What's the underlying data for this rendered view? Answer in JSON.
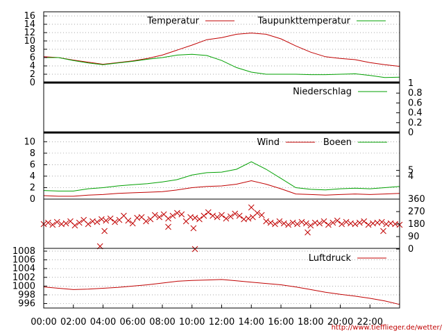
{
  "chart_data": {
    "type": "line",
    "x_ticks": [
      "00:00",
      "02:00",
      "04:00",
      "06:00",
      "08:00",
      "10:00",
      "12:00",
      "14:00",
      "16:00",
      "18:00",
      "20:00",
      "22:00"
    ],
    "x_range_hours": [
      0,
      24
    ],
    "source_url": "http://www.tiefflieger.de/wetter/",
    "colors": {
      "red": "#c00000",
      "green": "#00a000",
      "grid": "#888888",
      "axis": "#000000"
    },
    "panels": [
      {
        "id": "temperature",
        "ylim": [
          0,
          17
        ],
        "y_ticks": [
          "0",
          "2",
          "4",
          "6",
          "8",
          "10",
          "12",
          "14",
          "16"
        ],
        "grid": "dotted",
        "legend_placement": "top",
        "series": [
          {
            "name": "Temperatur",
            "color": "red",
            "x": [
              0,
              1,
              2,
              3,
              4,
              5,
              6,
              7,
              8,
              9,
              10,
              11,
              12,
              13,
              14,
              15,
              16,
              17,
              18,
              19,
              20,
              21,
              22,
              23,
              24
            ],
            "y": [
              6.2,
              6.0,
              5.4,
              4.9,
              4.4,
              4.8,
              5.2,
              5.8,
              6.6,
              7.8,
              9.0,
              10.3,
              10.8,
              11.6,
              11.9,
              11.6,
              10.5,
              8.8,
              7.3,
              6.2,
              5.8,
              5.5,
              4.8,
              4.3,
              3.9
            ]
          },
          {
            "name": "Taupunkttemperatur",
            "color": "green",
            "x": [
              0,
              1,
              2,
              3,
              4,
              5,
              6,
              7,
              8,
              9,
              10,
              11,
              12,
              13,
              14,
              15,
              16,
              17,
              18,
              19,
              20,
              21,
              22,
              23,
              24
            ],
            "y": [
              6.0,
              6.0,
              5.3,
              4.7,
              4.3,
              4.7,
              5.1,
              5.6,
              6.0,
              6.6,
              6.8,
              6.5,
              5.3,
              3.6,
              2.5,
              2.0,
              2.0,
              2.0,
              1.9,
              1.9,
              2.0,
              2.1,
              1.7,
              1.2,
              1.3
            ]
          }
        ]
      },
      {
        "id": "precipitation",
        "ylim": [
          0,
          1
        ],
        "y_ticks_right": [
          "0",
          "0.2",
          "0.4",
          "0.6",
          "0.8",
          "1"
        ],
        "series": [
          {
            "name": "Niederschlag",
            "color": "green",
            "x": [
              0,
              24
            ],
            "y": [
              0,
              0
            ]
          }
        ]
      },
      {
        "id": "wind",
        "ylim": [
          0,
          11
        ],
        "y_ticks": [
          "0",
          "2",
          "4",
          "6",
          "8",
          "10"
        ],
        "y_ticks_right": [
          "4",
          "5"
        ],
        "series": [
          {
            "name": "Wind",
            "color": "red",
            "x": [
              0,
              1,
              2,
              3,
              4,
              5,
              6,
              7,
              8,
              9,
              10,
              11,
              12,
              13,
              14,
              15,
              16,
              17,
              18,
              19,
              20,
              21,
              22,
              23,
              24
            ],
            "y": [
              0.6,
              0.5,
              0.5,
              0.7,
              0.8,
              1.0,
              1.1,
              1.2,
              1.3,
              1.6,
              2.0,
              2.2,
              2.3,
              2.6,
              3.2,
              2.6,
              1.8,
              0.9,
              0.8,
              0.7,
              0.8,
              0.9,
              0.8,
              0.9,
              1.0
            ]
          },
          {
            "name": "Boeen",
            "color": "green",
            "x": [
              0,
              1,
              2,
              3,
              4,
              5,
              6,
              7,
              8,
              9,
              10,
              11,
              12,
              13,
              14,
              15,
              16,
              17,
              18,
              19,
              20,
              21,
              22,
              23,
              24
            ],
            "y": [
              1.5,
              1.4,
              1.4,
              1.8,
              2.0,
              2.3,
              2.5,
              2.7,
              3.0,
              3.4,
              4.2,
              4.6,
              4.7,
              5.2,
              6.5,
              5.2,
              3.6,
              2.0,
              1.7,
              1.6,
              1.8,
              1.9,
              1.8,
              2.0,
              2.2
            ]
          }
        ]
      },
      {
        "id": "wind_direction",
        "ylim": [
          0,
          360
        ],
        "y_ticks_right": [
          "0",
          "90",
          "180",
          "270",
          "360"
        ],
        "series": [
          {
            "name": "",
            "color": "red",
            "marker": "x",
            "x": [
              0.0,
              0.3,
              0.6,
              0.9,
              1.2,
              1.5,
              1.8,
              2.1,
              2.4,
              2.7,
              3.0,
              3.3,
              3.6,
              3.9,
              4.2,
              4.5,
              4.8,
              5.1,
              5.4,
              5.7,
              6.0,
              6.3,
              6.6,
              6.9,
              7.2,
              7.5,
              7.8,
              8.1,
              8.4,
              8.7,
              9.0,
              9.3,
              9.6,
              9.9,
              10.2,
              10.5,
              10.8,
              11.1,
              11.4,
              11.7,
              12.0,
              12.3,
              12.6,
              12.9,
              13.2,
              13.5,
              13.8,
              14.1,
              14.4,
              14.7,
              15.0,
              15.3,
              15.6,
              15.9,
              16.2,
              16.5,
              16.8,
              17.1,
              17.4,
              17.7,
              18.0,
              18.3,
              18.6,
              18.9,
              19.2,
              19.5,
              19.8,
              20.1,
              20.4,
              20.7,
              21.0,
              21.3,
              21.6,
              21.9,
              22.2,
              22.5,
              22.8,
              23.1,
              23.4,
              23.7,
              24.0,
              3.8,
              10.2,
              14.0,
              10.1,
              4.1,
              8.4,
              17.8,
              22.9
            ],
            "y": [
              180,
              190,
              175,
              195,
              180,
              185,
              200,
              170,
              190,
              210,
              180,
              200,
              195,
              215,
              205,
              220,
              195,
              210,
              240,
              205,
              185,
              225,
              230,
              200,
              215,
              245,
              230,
              250,
              220,
              240,
              260,
              250,
              200,
              230,
              225,
              215,
              240,
              265,
              240,
              230,
              245,
              220,
              235,
              255,
              240,
              215,
              220,
              230,
              260,
              245,
              200,
              190,
              180,
              200,
              185,
              175,
              190,
              180,
              195,
              185,
              170,
              190,
              185,
              200,
              175,
              190,
              205,
              180,
              195,
              185,
              180,
              190,
              200,
              175,
              185,
              190,
              195,
              180,
              185,
              180,
              175,
              20,
              0,
              300,
              150,
              130,
              160,
              120,
              130
            ]
          }
        ]
      },
      {
        "id": "pressure",
        "ylim": [
          994.5,
          1008
        ],
        "y_ticks": [
          "996",
          "998",
          "1000",
          "1002",
          "1004",
          "1006",
          "1008"
        ],
        "series": [
          {
            "name": "Luftdruck",
            "color": "red",
            "x": [
              0,
              1,
              2,
              3,
              4,
              5,
              6,
              7,
              8,
              9,
              10,
              11,
              12,
              13,
              14,
              15,
              16,
              17,
              18,
              19,
              20,
              21,
              22,
              23,
              24
            ],
            "y": [
              999.8,
              999.5,
              999.2,
              999.3,
              999.5,
              999.7,
              1000.0,
              1000.3,
              1000.7,
              1001.1,
              1001.3,
              1001.4,
              1001.5,
              1001.2,
              1000.9,
              1000.6,
              1000.3,
              999.8,
              999.2,
              998.6,
              998.1,
              997.7,
              997.2,
              996.6,
              995.8
            ]
          }
        ]
      }
    ]
  }
}
